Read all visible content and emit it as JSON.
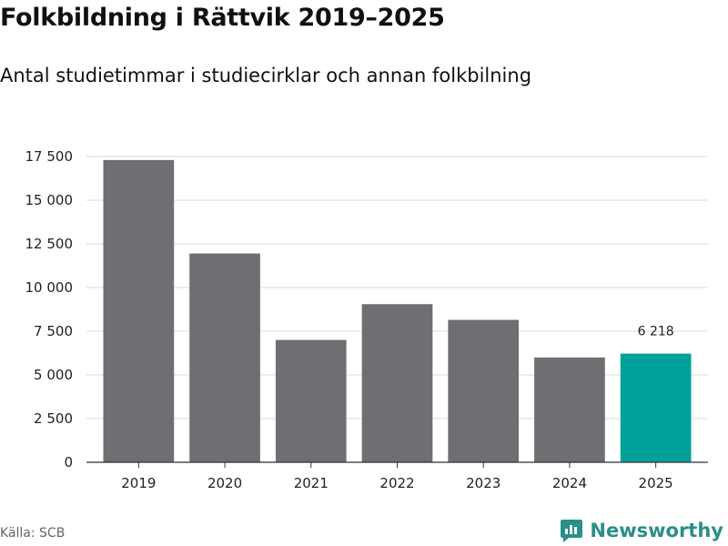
{
  "title": "Folkbildning i Rättvik 2019–2025",
  "subtitle": "Antal studietimmar i studiecirklar och annan folkbilning",
  "source": "Källa: SCB",
  "brand": {
    "name": "Newsworthy",
    "icon": "newsworthy-logo-icon",
    "color": "#2a8f8a"
  },
  "colors": {
    "bar": "#6e6e73",
    "highlight": "#00a19a",
    "grid": "#d9d9d9",
    "axis": "#333333"
  },
  "chart_data": {
    "type": "bar",
    "categories": [
      "2019",
      "2020",
      "2021",
      "2022",
      "2023",
      "2024",
      "2025"
    ],
    "values": [
      17300,
      11950,
      7000,
      9050,
      8150,
      6000,
      6218
    ],
    "highlight_index": 6,
    "data_labels": [
      {
        "index": 6,
        "text": "6 218"
      }
    ],
    "ylim": [
      0,
      17500
    ],
    "yticks": [
      0,
      2500,
      5000,
      7500,
      10000,
      12500,
      15000,
      17500
    ],
    "ytick_labels": [
      "0",
      "2 500",
      "5 000",
      "7 500",
      "10 000",
      "12 500",
      "15 000",
      "17 500"
    ],
    "grid": true,
    "xlabel": "",
    "ylabel": ""
  }
}
